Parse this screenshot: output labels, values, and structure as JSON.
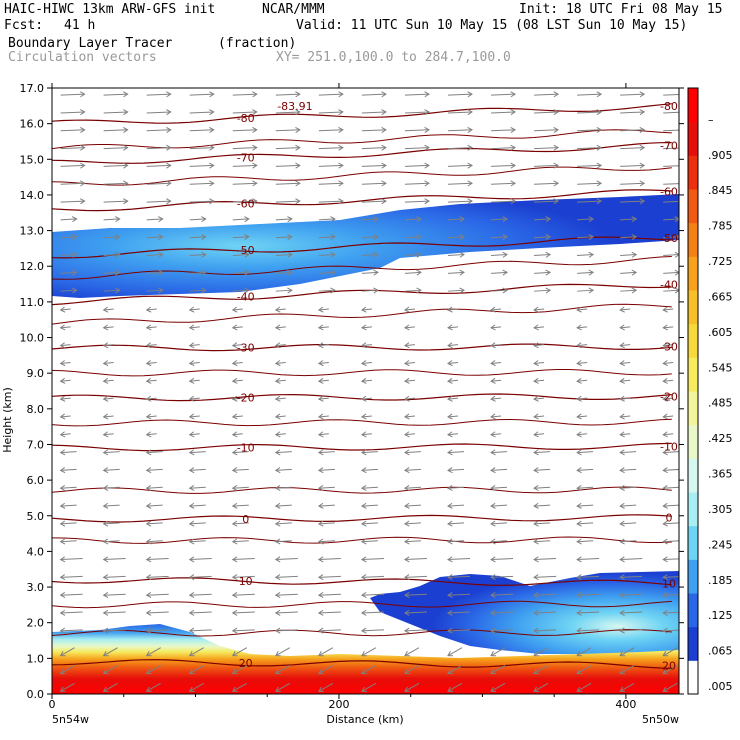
{
  "header": {
    "model": "HAIC-HIWC 13km ARW-GFS init",
    "org": "NCAR/MMM",
    "init": "Init: 18 UTC Fri 08 May 15",
    "fcst_label": "Fcst:",
    "fcst_value": "41 h",
    "valid": "Valid: 11 UTC Sun 10 May 15 (08 LST Sun 10 May 15)",
    "field": "Boundary Layer Tracer",
    "units": "(fraction)",
    "vectors": "Circulation vectors",
    "xy": "XY= 251.0,100.0 to 284.7,100.0"
  },
  "colors": {
    "contour": "#7a0000",
    "vector": "#808080",
    "colorbar": [
      "#ffffff",
      "#1b3fd0",
      "#2a66e6",
      "#3fa0f0",
      "#6fd4f4",
      "#a8eef2",
      "#d6f7f0",
      "#e8f8c8",
      "#f4f49a",
      "#f6ea5e",
      "#f8d93c",
      "#f8c028",
      "#f6a21c",
      "#f48018",
      "#f05a12",
      "#ec300e",
      "#e60e0a",
      "#ff0000"
    ]
  },
  "chart_data": {
    "type": "cross-section",
    "xlabel": "Distance (km)",
    "ylabel": "Height (km)",
    "xlim": [
      0,
      437
    ],
    "ylim": [
      0,
      17
    ],
    "x_ticks": [
      0,
      200,
      400
    ],
    "y_ticks": [
      "0.0",
      "1.0",
      "2.0",
      "3.0",
      "4.0",
      "5.0",
      "6.0",
      "7.0",
      "8.0",
      "9.0",
      "10.0",
      "11.0",
      "12.0",
      "13.0",
      "14.0",
      "15.0",
      "16.0",
      "17.0"
    ],
    "x_end_labels": {
      "left": "5n54w",
      "right": "5n50w"
    },
    "colorbar_labels": [
      ".005",
      ".065",
      ".125",
      ".185",
      ".245",
      ".305",
      ".365",
      ".425",
      ".485",
      ".545",
      ".605",
      ".665",
      ".725",
      ".785",
      ".845",
      ".905",
      "–"
    ],
    "temperature_contours": [
      {
        "label": "-83.91",
        "x": 150,
        "height": 16.5
      },
      {
        "label": "-80",
        "height": 16.0
      },
      {
        "label": "-70",
        "height": 14.9
      },
      {
        "label": "-60",
        "height": 13.6
      },
      {
        "label": "-50",
        "height": 12.3
      },
      {
        "label": "-40",
        "height": 11.0
      },
      {
        "label": "-30",
        "height": 9.7
      },
      {
        "label": "-20",
        "height": 8.3
      },
      {
        "label": "-10",
        "height": 6.9
      },
      {
        "label": "0",
        "height": 4.9
      },
      {
        "label": "10",
        "height": 3.2
      },
      {
        "label": "20",
        "height": 0.9
      }
    ]
  }
}
